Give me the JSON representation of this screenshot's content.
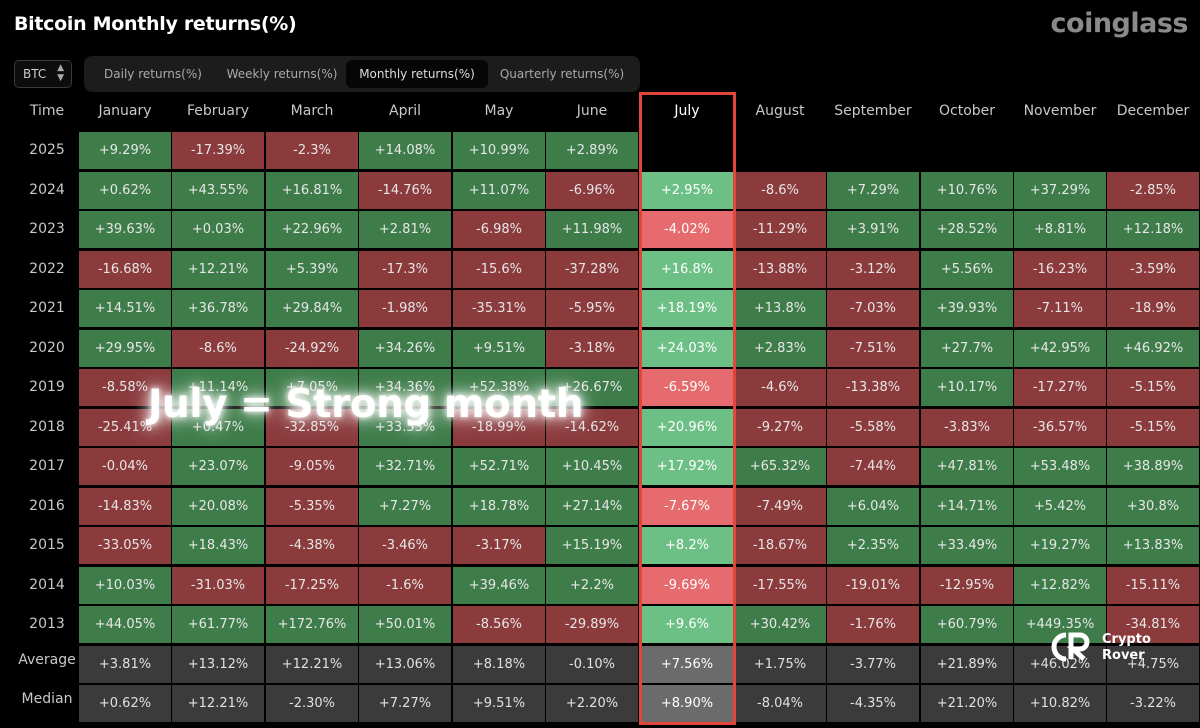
{
  "header": {
    "title": "Bitcoin Monthly returns(%)",
    "brand": "coinglass",
    "coin": "BTC"
  },
  "tabs": [
    {
      "label": "Daily returns(%)",
      "active": false
    },
    {
      "label": "Weekly returns(%)",
      "active": false
    },
    {
      "label": "Monthly returns(%)",
      "active": true
    },
    {
      "label": "Quarterly returns(%)",
      "active": false
    }
  ],
  "overlay_text": "July = Strong month",
  "watermark": {
    "line1": "Crypto",
    "line2": "Rover"
  },
  "colors": {
    "positive": "#3e7d4a",
    "negative": "#8c3b3d",
    "highlight_positive": "#6cc085",
    "highlight_negative": "#e56b6e",
    "highlight_frame": "#e0463a"
  },
  "chart_data": {
    "type": "heatmap",
    "title": "Bitcoin Monthly returns(%)",
    "row_header": "Time",
    "columns": [
      "January",
      "February",
      "March",
      "April",
      "May",
      "June",
      "July",
      "August",
      "September",
      "October",
      "November",
      "December"
    ],
    "highlight_column": "July",
    "rows": [
      {
        "label": "2025",
        "values": [
          "+9.29%",
          "-17.39%",
          "-2.3%",
          "+14.08%",
          "+10.99%",
          "+2.89%",
          "",
          "",
          "",
          "",
          "",
          ""
        ]
      },
      {
        "label": "2024",
        "values": [
          "+0.62%",
          "+43.55%",
          "+16.81%",
          "-14.76%",
          "+11.07%",
          "-6.96%",
          "+2.95%",
          "-8.6%",
          "+7.29%",
          "+10.76%",
          "+37.29%",
          "-2.85%"
        ]
      },
      {
        "label": "2023",
        "values": [
          "+39.63%",
          "+0.03%",
          "+22.96%",
          "+2.81%",
          "-6.98%",
          "+11.98%",
          "-4.02%",
          "-11.29%",
          "+3.91%",
          "+28.52%",
          "+8.81%",
          "+12.18%"
        ]
      },
      {
        "label": "2022",
        "values": [
          "-16.68%",
          "+12.21%",
          "+5.39%",
          "-17.3%",
          "-15.6%",
          "-37.28%",
          "+16.8%",
          "-13.88%",
          "-3.12%",
          "+5.56%",
          "-16.23%",
          "-3.59%"
        ]
      },
      {
        "label": "2021",
        "values": [
          "+14.51%",
          "+36.78%",
          "+29.84%",
          "-1.98%",
          "-35.31%",
          "-5.95%",
          "+18.19%",
          "+13.8%",
          "-7.03%",
          "+39.93%",
          "-7.11%",
          "-18.9%"
        ]
      },
      {
        "label": "2020",
        "values": [
          "+29.95%",
          "-8.6%",
          "-24.92%",
          "+34.26%",
          "+9.51%",
          "-3.18%",
          "+24.03%",
          "+2.83%",
          "-7.51%",
          "+27.7%",
          "+42.95%",
          "+46.92%"
        ]
      },
      {
        "label": "2019",
        "values": [
          "-8.58%",
          "+11.14%",
          "+7.05%",
          "+34.36%",
          "+52.38%",
          "+26.67%",
          "-6.59%",
          "-4.6%",
          "-13.38%",
          "+10.17%",
          "-17.27%",
          "-5.15%"
        ]
      },
      {
        "label": "2018",
        "values": [
          "-25.41%",
          "+0.47%",
          "-32.85%",
          "+33.53%",
          "-18.99%",
          "-14.62%",
          "+20.96%",
          "-9.27%",
          "-5.58%",
          "-3.83%",
          "-36.57%",
          "-5.15%"
        ]
      },
      {
        "label": "2017",
        "values": [
          "-0.04%",
          "+23.07%",
          "-9.05%",
          "+32.71%",
          "+52.71%",
          "+10.45%",
          "+17.92%",
          "+65.32%",
          "-7.44%",
          "+47.81%",
          "+53.48%",
          "+38.89%"
        ]
      },
      {
        "label": "2016",
        "values": [
          "-14.83%",
          "+20.08%",
          "-5.35%",
          "+7.27%",
          "+18.78%",
          "+27.14%",
          "-7.67%",
          "-7.49%",
          "+6.04%",
          "+14.71%",
          "+5.42%",
          "+30.8%"
        ]
      },
      {
        "label": "2015",
        "values": [
          "-33.05%",
          "+18.43%",
          "-4.38%",
          "-3.46%",
          "-3.17%",
          "+15.19%",
          "+8.2%",
          "-18.67%",
          "+2.35%",
          "+33.49%",
          "+19.27%",
          "+13.83%"
        ]
      },
      {
        "label": "2014",
        "values": [
          "+10.03%",
          "-31.03%",
          "-17.25%",
          "-1.6%",
          "+39.46%",
          "+2.2%",
          "-9.69%",
          "-17.55%",
          "-19.01%",
          "-12.95%",
          "+12.82%",
          "-15.11%"
        ]
      },
      {
        "label": "2013",
        "values": [
          "+44.05%",
          "+61.77%",
          "+172.76%",
          "+50.01%",
          "-8.56%",
          "-29.89%",
          "+9.6%",
          "+30.42%",
          "-1.76%",
          "+60.79%",
          "+449.35%",
          "-34.81%"
        ]
      },
      {
        "label": "Average",
        "summary": true,
        "values": [
          "+3.81%",
          "+13.12%",
          "+12.21%",
          "+13.06%",
          "+8.18%",
          "-0.10%",
          "+7.56%",
          "+1.75%",
          "-3.77%",
          "+21.89%",
          "+46.02%",
          "+4.75%"
        ]
      },
      {
        "label": "Median",
        "summary": true,
        "values": [
          "+0.62%",
          "+12.21%",
          "-2.30%",
          "+7.27%",
          "+9.51%",
          "+2.20%",
          "+8.90%",
          "-8.04%",
          "-4.35%",
          "+21.20%",
          "+10.82%",
          "-3.22%"
        ]
      }
    ]
  }
}
